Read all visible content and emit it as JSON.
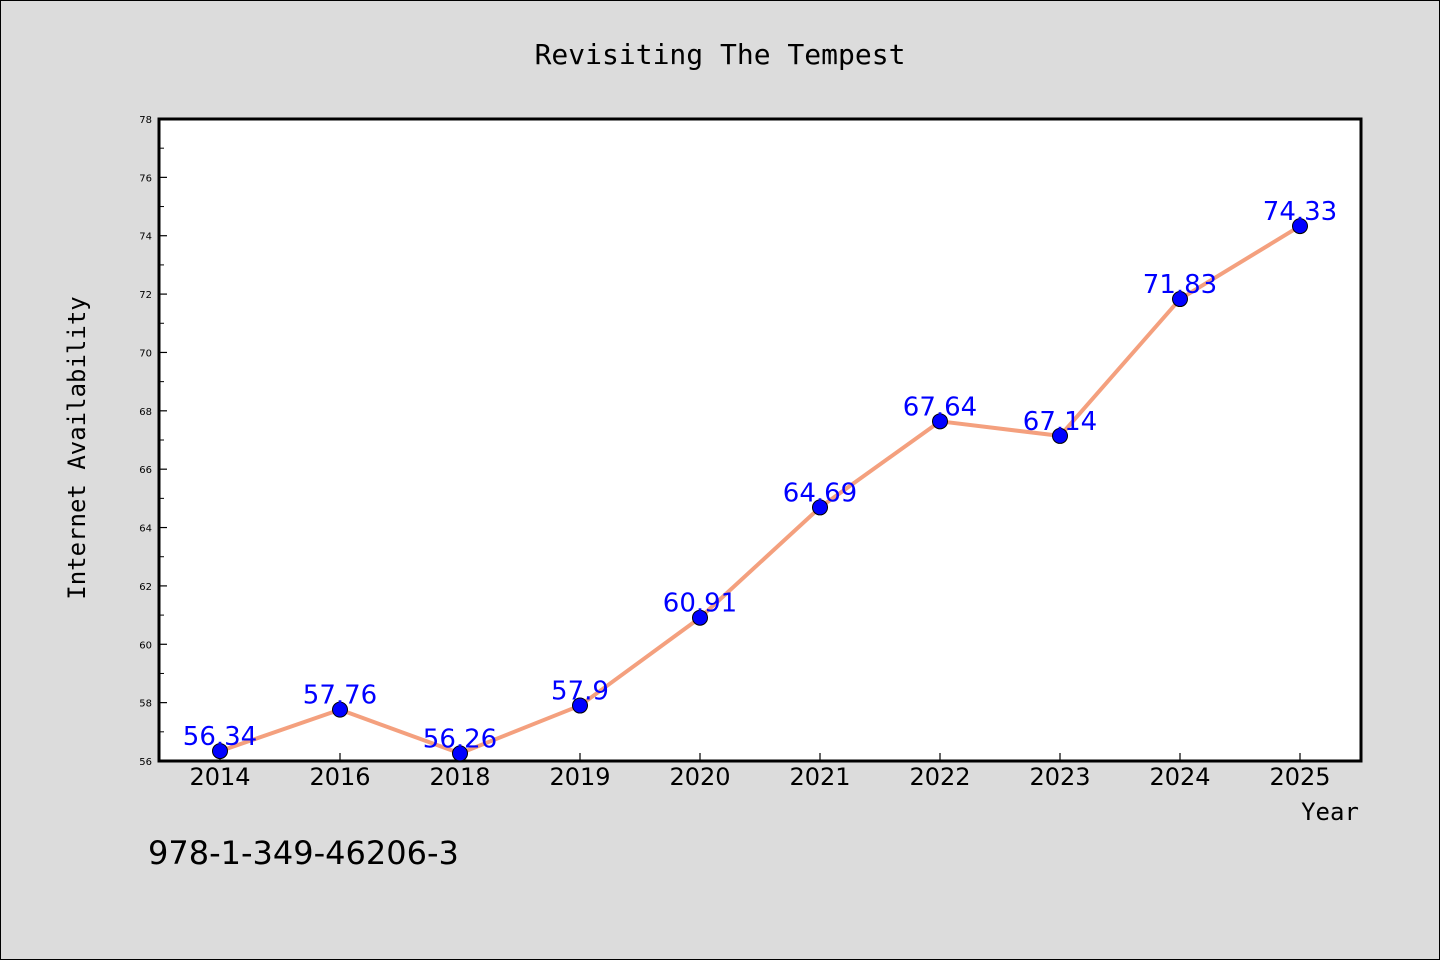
{
  "chart_data": {
    "type": "line",
    "title": "Revisiting The Tempest",
    "xlabel": "Year",
    "ylabel": "Internet Availability",
    "categories": [
      "2014",
      "2016",
      "2018",
      "2019",
      "2020",
      "2021",
      "2022",
      "2023",
      "2024",
      "2025"
    ],
    "series": [
      {
        "values": [
          56.34,
          57.76,
          56.26,
          57.9,
          60.91,
          64.69,
          67.64,
          67.14,
          71.83,
          74.33
        ],
        "labels": [
          "56.34",
          "57.76",
          "56.26",
          "57.9",
          "60.91",
          "64.69",
          "67.64",
          "67.14",
          "71.83",
          "74.33"
        ],
        "line_color": "#f4a07e",
        "marker_color": "#0000ff"
      }
    ],
    "ylim": [
      56,
      78
    ],
    "yticks": [
      "56",
      "58",
      "60",
      "62",
      "64",
      "66",
      "68",
      "70",
      "72",
      "74",
      "76",
      "78"
    ],
    "grid": false,
    "legend": "none"
  },
  "footer": {
    "isbn": "978-1-349-46206-3"
  },
  "colors": {
    "background": "#dcdcdc",
    "plot_background": "#ffffff"
  }
}
